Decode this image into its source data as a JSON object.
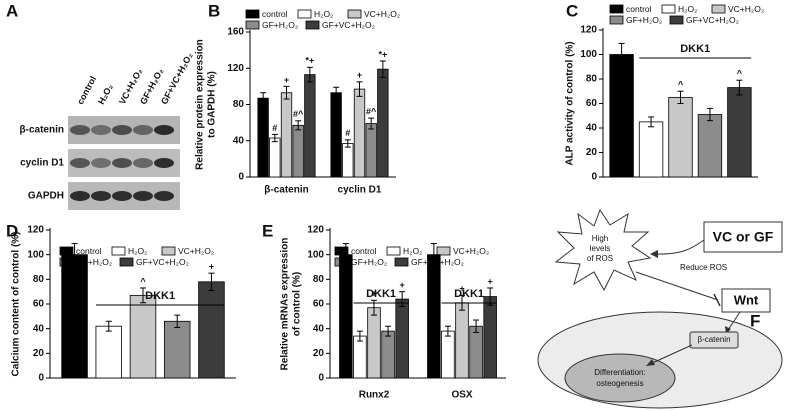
{
  "panel_labels": [
    "A",
    "B",
    "C",
    "D",
    "E",
    "F"
  ],
  "blot": {
    "lanes": [
      "control",
      "H₂O₂",
      "VC+H₂O₂",
      "GF+H₂O₂",
      "GF+VC+H₂O₂"
    ],
    "rows": [
      "β-catenin",
      "cyclin D1",
      "GAPDH"
    ]
  },
  "chart_data": [
    {
      "type": "bar",
      "ylabel": [
        "Relative protein expression",
        "to GAPDH (%)"
      ],
      "categories": [
        "β-catenin",
        "cyclin D1"
      ],
      "ylim": [
        0,
        160
      ],
      "yticks": [
        0,
        40,
        80,
        120,
        160
      ],
      "series": [
        {
          "name": "control",
          "color": "#000000",
          "values": [
            87,
            93
          ],
          "errors": [
            6,
            6
          ],
          "annotations": [
            null,
            null
          ]
        },
        {
          "name": "H₂O₂",
          "color": "#ffffff",
          "values": [
            43,
            37
          ],
          "errors": [
            4,
            4
          ],
          "annotations": [
            "#",
            "#"
          ]
        },
        {
          "name": "VC+H₂O₂",
          "color": "#c8c8c8",
          "values": [
            93,
            97
          ],
          "errors": [
            7,
            8
          ],
          "annotations": [
            "+",
            "+"
          ]
        },
        {
          "name": "GF+H₂O₂",
          "color": "#8c8c8c",
          "values": [
            57,
            59
          ],
          "errors": [
            5,
            6
          ],
          "annotations": [
            "#^",
            "#^"
          ]
        },
        {
          "name": "GF+VC+H₂O₂",
          "color": "#3c3c3c",
          "values": [
            113,
            119
          ],
          "errors": [
            8,
            9
          ],
          "annotations": [
            "*+",
            "*+"
          ]
        }
      ]
    },
    {
      "type": "bar",
      "ylabel": "ALP activity of control (%)",
      "categories": [
        null
      ],
      "bracket_labels": [
        "DKK1"
      ],
      "ylim": [
        0,
        120
      ],
      "yticks": [
        0,
        20,
        40,
        60,
        80,
        100,
        120
      ],
      "series": [
        {
          "name": "control",
          "color": "#000000",
          "values": [
            100
          ],
          "errors": [
            9
          ],
          "annotations": [
            null
          ]
        },
        {
          "name": "H₂O₂",
          "color": "#ffffff",
          "values": [
            45
          ],
          "errors": [
            4
          ],
          "annotations": [
            null
          ]
        },
        {
          "name": "VC+H₂O₂",
          "color": "#c8c8c8",
          "values": [
            65
          ],
          "errors": [
            5
          ],
          "annotations": [
            "^"
          ]
        },
        {
          "name": "GF+H₂O₂",
          "color": "#8c8c8c",
          "values": [
            51
          ],
          "errors": [
            5
          ],
          "annotations": [
            null
          ]
        },
        {
          "name": "GF+VC+H₂O₂",
          "color": "#3c3c3c",
          "values": [
            73
          ],
          "errors": [
            6
          ],
          "annotations": [
            "^"
          ]
        }
      ]
    },
    {
      "type": "bar",
      "ylabel": "Calcium content of control (%)",
      "categories": [
        null
      ],
      "bracket_labels": [
        "DKK1"
      ],
      "ylim": [
        0,
        120
      ],
      "yticks": [
        0,
        20,
        40,
        60,
        80,
        100,
        120
      ],
      "series": [
        {
          "name": "control",
          "color": "#000000",
          "values": [
            100
          ],
          "errors": [
            9
          ],
          "annotations": [
            null
          ]
        },
        {
          "name": "H₂O₂",
          "color": "#ffffff",
          "values": [
            42
          ],
          "errors": [
            4
          ],
          "annotations": [
            null
          ]
        },
        {
          "name": "VC+H₂O₂",
          "color": "#c8c8c8",
          "values": [
            67
          ],
          "errors": [
            6
          ],
          "annotations": [
            "^"
          ]
        },
        {
          "name": "GF+H₂O₂",
          "color": "#8c8c8c",
          "values": [
            46
          ],
          "errors": [
            5
          ],
          "annotations": [
            null
          ]
        },
        {
          "name": "GF+VC+H₂O₂",
          "color": "#3c3c3c",
          "values": [
            78
          ],
          "errors": [
            7
          ],
          "annotations": [
            "+"
          ]
        }
      ]
    },
    {
      "type": "bar",
      "ylabel": [
        "Relative mRNAs expression",
        "of control (%)"
      ],
      "categories": [
        "Runx2",
        "OSX"
      ],
      "bracket_labels": [
        "DKK1",
        "DKK1"
      ],
      "ylim": [
        0,
        120
      ],
      "yticks": [
        0,
        20,
        40,
        60,
        80,
        100,
        120
      ],
      "series": [
        {
          "name": "control",
          "color": "#000000",
          "values": [
            100,
            100
          ],
          "errors": [
            9,
            9
          ],
          "annotations": [
            null,
            null
          ]
        },
        {
          "name": "H₂O₂",
          "color": "#ffffff",
          "values": [
            34,
            38
          ],
          "errors": [
            4,
            4
          ],
          "annotations": [
            null,
            null
          ]
        },
        {
          "name": "VC+H₂O₂",
          "color": "#c8c8c8",
          "values": [
            57,
            61
          ],
          "errors": [
            6,
            6
          ],
          "annotations": [
            "+",
            "+"
          ]
        },
        {
          "name": "GF+H₂O₂",
          "color": "#8c8c8c",
          "values": [
            38,
            42
          ],
          "errors": [
            4,
            5
          ],
          "annotations": [
            null,
            null
          ]
        },
        {
          "name": "GF+VC+H₂O₂",
          "color": "#3c3c3c",
          "values": [
            64,
            66
          ],
          "errors": [
            6,
            7
          ],
          "annotations": [
            "+",
            "+"
          ]
        }
      ]
    }
  ],
  "diagram": {
    "ros": [
      "High",
      "levels",
      "of ROS"
    ],
    "agent": "VC or GF",
    "reduce": "Reduce ROS",
    "wnt": "Wnt",
    "beta": "β-catenin",
    "diff": [
      "Differentiation:",
      "osteogenesis"
    ]
  }
}
